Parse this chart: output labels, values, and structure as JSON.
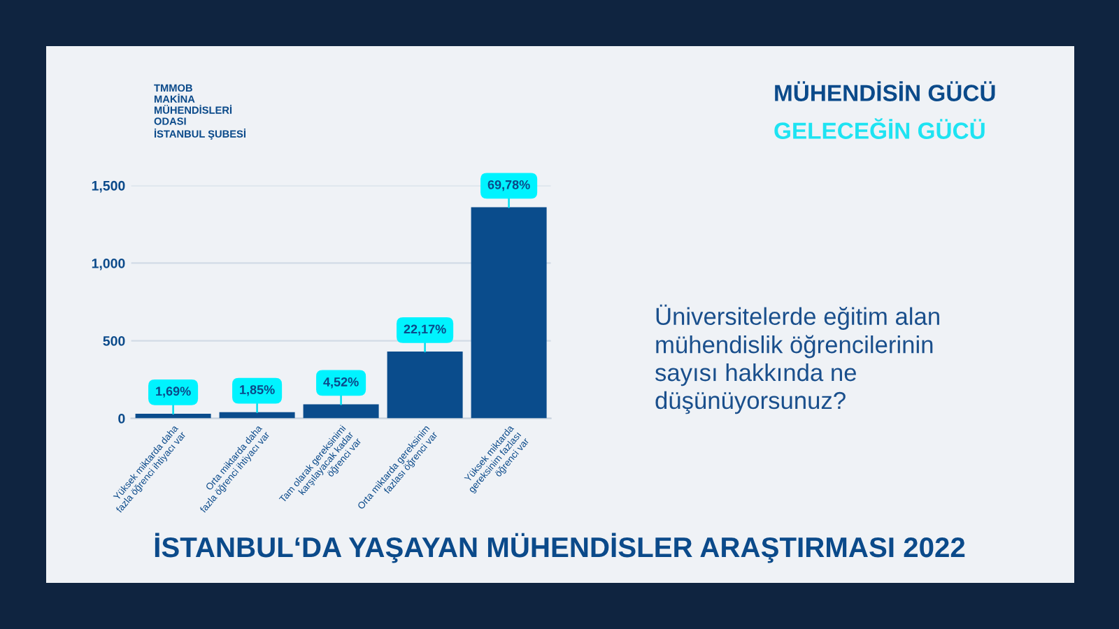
{
  "chart_data": {
    "type": "bar",
    "title": "İSTANBUL‘DA YAŞAYAN MÜHENDİSLER ARAŞTIRMASI 2022",
    "subtitle": "Üniversitelerde eğitim alan\nmühendislik öğrencilerinin\nsayısı hakkında ne\ndüşünüyorsunuz?",
    "categories": [
      "Yüksek miktarda daha\nfazla öğrenci ihtiyacı var",
      "Orta miktarda daha\nfazla öğrenci ihtiyacı var",
      "Tam olarak gereksinimi\nkarşılayacak kadar\nöğrenci var",
      "Orta miktarda gereksinim\nfazlası öğrenci var",
      "Yüksek miktarda\ngereksinim fazlası\nöğrenci var"
    ],
    "values": [
      30,
      40,
      90,
      430,
      1360
    ],
    "color": "#0a4c8c",
    "annotations": [
      "TMMOB\nMAKİNA\nMÜHENDİSLERİ\nODASI\nİSTANBUL ŞUBESİ",
      "MÜHENDİSİN GÜCÜ",
      "GELECEĞİN GÜCÜ",
      {
        "text": "1,69%",
        "x": "Yüksek miktarda daha\nfazla öğrenci ihtiyacı var",
        "y": 30
      },
      {
        "text": "1,85%",
        "x": "Orta miktarda daha\nfazla öğrenci ihtiyacı var",
        "y": 40
      },
      {
        "text": "4,52%",
        "x": "Tam olarak gereksinimi\nkarşılayacak kadar\nöğrenci var",
        "y": 90
      },
      {
        "text": "22,17%",
        "x": "Orta miktarda gereksinim\nfazlası öğrenci var",
        "y": 430
      },
      {
        "text": "69,78%",
        "x": "Yüksek miktarda\ngereksinim fazlası\nöğrenci var",
        "y": 1360
      }
    ],
    "ylim": [
      0,
      1500
    ],
    "yticks": [
      0,
      500,
      {
        "value": 1000,
        "label": "1,000"
      },
      {
        "value": 1500,
        "label": "1,500"
      }
    ],
    "grid": "y"
  }
}
